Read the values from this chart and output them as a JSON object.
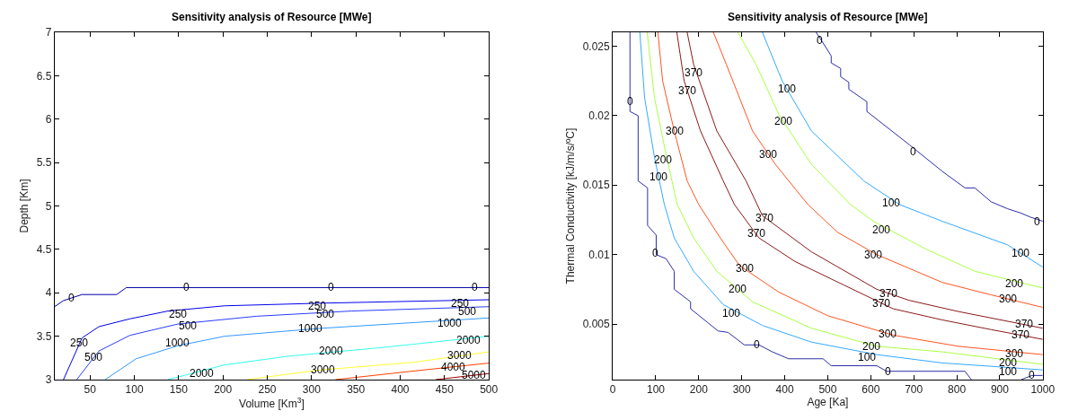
{
  "chart_data": [
    {
      "type": "line",
      "title": "Sensitivity analysis of Resource [MWe]",
      "xlabel": "Volume [Km$^{3}$]",
      "ylabel": "Depth [Km]",
      "xlim": [
        10,
        500
      ],
      "xticks": [
        50,
        100,
        150,
        200,
        250,
        300,
        350,
        400,
        450,
        500
      ],
      "ylim": [
        3,
        7
      ],
      "yticks": [
        3,
        3.5,
        4,
        4.5,
        5,
        5.5,
        6,
        6.5,
        7
      ],
      "marker": "none",
      "line_style": "solid",
      "series": [
        {
          "color": "#0000a8",
          "x": [
            10,
            20,
            41,
            80,
            91,
            500
          ],
          "values": [
            3.84,
            3.91,
            3.98,
            3.98,
            4.06,
            4.06
          ]
        },
        {
          "color": "#0000e8",
          "x": [
            20,
            41,
            60,
            95,
            138,
            202,
            309,
            500
          ],
          "values": [
            3,
            3.48,
            3.61,
            3.7,
            3.79,
            3.85,
            3.88,
            3.92
          ]
        },
        {
          "color": "#2a3cff",
          "x": [
            35,
            60,
            95,
            149,
            238,
            345,
            500
          ],
          "values": [
            3,
            3.33,
            3.51,
            3.64,
            3.73,
            3.79,
            3.84
          ]
        },
        {
          "color": "#3399ff",
          "x": [
            67,
            102,
            149,
            202,
            309,
            500
          ],
          "values": [
            3,
            3.24,
            3.39,
            3.5,
            3.59,
            3.71
          ]
        },
        {
          "color": "#33ffee",
          "x": [
            138,
            202,
            274,
            380,
            500
          ],
          "values": [
            3,
            3.17,
            3.27,
            3.37,
            3.5
          ]
        },
        {
          "color": "#ffff33",
          "x": [
            227,
            309,
            416,
            500
          ],
          "values": [
            3,
            3.11,
            3.2,
            3.32
          ]
        },
        {
          "color": "#ff4000",
          "x": [
            327,
            416,
            500
          ],
          "values": [
            3,
            3.1,
            3.19
          ]
        },
        {
          "color": "#a00000",
          "x": [
            440,
            500
          ],
          "values": [
            3,
            3.07
          ]
        }
      ],
      "annotations": [
        {
          "text": "0",
          "x": 29,
          "y": 3.94
        },
        {
          "text": "0",
          "x": 159,
          "y": 4.06
        },
        {
          "text": "0",
          "x": 322,
          "y": 4.06
        },
        {
          "text": "0",
          "x": 484,
          "y": 4.06
        },
        {
          "text": "250",
          "x": 38,
          "y": 3.42
        },
        {
          "text": "250",
          "x": 149,
          "y": 3.75
        },
        {
          "text": "250",
          "x": 306,
          "y": 3.85
        },
        {
          "text": "250",
          "x": 467,
          "y": 3.88
        },
        {
          "text": "500",
          "x": 54,
          "y": 3.26
        },
        {
          "text": "500",
          "x": 160,
          "y": 3.62
        },
        {
          "text": "500",
          "x": 315,
          "y": 3.75
        },
        {
          "text": "500",
          "x": 475,
          "y": 3.79
        },
        {
          "text": "1000",
          "x": 149,
          "y": 3.42
        },
        {
          "text": "1000",
          "x": 299,
          "y": 3.59
        },
        {
          "text": "1000",
          "x": 456,
          "y": 3.65
        },
        {
          "text": "2000",
          "x": 176,
          "y": 3.07
        },
        {
          "text": "2000",
          "x": 322,
          "y": 3.33
        },
        {
          "text": "2000",
          "x": 477,
          "y": 3.46
        },
        {
          "text": "3000",
          "x": 313,
          "y": 3.11
        },
        {
          "text": "3000",
          "x": 467,
          "y": 3.28
        },
        {
          "text": "4000",
          "x": 460,
          "y": 3.14
        },
        {
          "text": "5000",
          "x": 483,
          "y": 3.05
        }
      ]
    },
    {
      "type": "line",
      "title": "Sensitivity analysis of Resource [MWe]",
      "xlabel": "Age [Ka]",
      "ylabel": "Thermal Conductivity [kJ/m/s/ºC]",
      "xlim": [
        0,
        1000
      ],
      "xticks": [
        0,
        100,
        200,
        300,
        400,
        500,
        600,
        700,
        800,
        900,
        1000
      ],
      "ylim": [
        0.001,
        0.026
      ],
      "yticks": [
        0.005,
        0.01,
        0.015,
        0.02,
        0.025
      ],
      "marker": "none",
      "line_style": "solid",
      "series": [
        {
          "color": "#2e2ea8",
          "x": [
            40,
            40,
            59,
            59,
            81,
            81,
            101,
            101,
            124,
            143,
            143,
            181,
            181,
            245,
            268,
            306,
            340,
            371,
            409,
            489,
            508,
            614,
            637,
            819,
            834
          ],
          "values": [
            0.026,
            0.0203,
            0.02,
            0.0153,
            0.0148,
            0.0121,
            0.0114,
            0.01,
            0.0097,
            0.0088,
            0.0075,
            0.0066,
            0.0061,
            0.0045,
            0.0044,
            0.0035,
            0.0035,
            0.003,
            0.0025,
            0.0025,
            0.002,
            0.002,
            0.0016,
            0.0016,
            0.001
          ]
        },
        {
          "color": "#33aaff",
          "x": [
            63,
            74,
            97,
            120,
            143,
            188,
            257,
            348,
            462,
            614,
            766,
            1000
          ],
          "values": [
            0.026,
            0.0213,
            0.017,
            0.0136,
            0.0112,
            0.0088,
            0.0064,
            0.0049,
            0.0037,
            0.0028,
            0.0022,
            0.0017
          ]
        },
        {
          "color": "#aaff44",
          "x": [
            80,
            97,
            124,
            150,
            188,
            242,
            325,
            462,
            614,
            766,
            1000
          ],
          "values": [
            0.026,
            0.0213,
            0.0172,
            0.0136,
            0.0112,
            0.0088,
            0.0066,
            0.0047,
            0.0034,
            0.003,
            0.0021
          ]
        },
        {
          "color": "#ff5522",
          "x": [
            105,
            116,
            143,
            173,
            200,
            250,
            295,
            386,
            500,
            652,
            804,
            1000
          ],
          "values": [
            0.026,
            0.0225,
            0.0189,
            0.0153,
            0.0136,
            0.0112,
            0.0092,
            0.0073,
            0.0056,
            0.0042,
            0.0034,
            0.0028
          ]
        },
        {
          "color": "#8b1a1a",
          "x": [
            149,
            166,
            204,
            257,
            283,
            340,
            424,
            538,
            652,
            766,
            880,
            1000
          ],
          "values": [
            0.026,
            0.0225,
            0.0189,
            0.0153,
            0.0136,
            0.0112,
            0.0095,
            0.0078,
            0.0061,
            0.0053,
            0.0046,
            0.0039
          ]
        },
        {
          "color": "#8b1a1a",
          "x": [
            173,
            188,
            242,
            310,
            348,
            462,
            614,
            690,
            804,
            1000
          ],
          "values": [
            0.026,
            0.0237,
            0.0189,
            0.0153,
            0.0128,
            0.0102,
            0.0075,
            0.0067,
            0.0059,
            0.0047
          ]
        },
        {
          "color": "#ff5522",
          "x": [
            234,
            264,
            325,
            378,
            454,
            523,
            614,
            766,
            880,
            1000
          ],
          "values": [
            0.026,
            0.0237,
            0.0189,
            0.0165,
            0.0136,
            0.0116,
            0.01,
            0.008,
            0.0071,
            0.0062
          ]
        },
        {
          "color": "#aaff44",
          "x": [
            291,
            333,
            386,
            462,
            553,
            606,
            728,
            842,
            1000
          ],
          "values": [
            0.026,
            0.0237,
            0.0201,
            0.0165,
            0.0136,
            0.0124,
            0.0104,
            0.0088,
            0.0076
          ]
        },
        {
          "color": "#33aaff",
          "x": [
            348,
            394,
            462,
            584,
            667,
            766,
            918,
            1000
          ],
          "values": [
            0.026,
            0.0225,
            0.0189,
            0.0153,
            0.0136,
            0.0124,
            0.0107,
            0.0091
          ]
        },
        {
          "color": "#2e2ea8",
          "x": [
            950,
            975,
            1000
          ],
          "values": [
            0.001,
            0.0013,
            0.0013
          ]
        },
        {
          "color": "#2e2ea8",
          "x": [
            473,
            496,
            508,
            508,
            530,
            530,
            549,
            549,
            591,
            591,
            690,
            766,
            819,
            842,
            880,
            918,
            948,
            971,
            1000
          ],
          "values": [
            0.026,
            0.0249,
            0.0243,
            0.0238,
            0.0234,
            0.0228,
            0.0224,
            0.0219,
            0.021,
            0.0203,
            0.0179,
            0.016,
            0.0148,
            0.0148,
            0.0138,
            0.0133,
            0.013,
            0.0127,
            0.0124
          ]
        }
      ],
      "annotations": [
        {
          "text": "0",
          "x": 40,
          "y": 0.021
        },
        {
          "text": "0",
          "x": 100,
          "y": 0.0101
        },
        {
          "text": "0",
          "x": 335,
          "y": 0.0035
        },
        {
          "text": "0",
          "x": 640,
          "y": 0.0016
        },
        {
          "text": "0",
          "x": 975,
          "y": 0.0013
        },
        {
          "text": "100",
          "x": 106,
          "y": 0.0156
        },
        {
          "text": "100",
          "x": 276,
          "y": 0.0058
        },
        {
          "text": "100",
          "x": 591,
          "y": 0.0026
        },
        {
          "text": "100",
          "x": 918,
          "y": 0.0016
        },
        {
          "text": "200",
          "x": 116,
          "y": 0.0168
        },
        {
          "text": "200",
          "x": 291,
          "y": 0.0075
        },
        {
          "text": "200",
          "x": 602,
          "y": 0.0034
        },
        {
          "text": "200",
          "x": 918,
          "y": 0.0022
        },
        {
          "text": "300",
          "x": 143,
          "y": 0.0189
        },
        {
          "text": "300",
          "x": 306,
          "y": 0.009
        },
        {
          "text": "300",
          "x": 640,
          "y": 0.0043
        },
        {
          "text": "300",
          "x": 933,
          "y": 0.0029
        },
        {
          "text": "370",
          "x": 173,
          "y": 0.0218
        },
        {
          "text": "370",
          "x": 333,
          "y": 0.0115
        },
        {
          "text": "370",
          "x": 625,
          "y": 0.0065
        },
        {
          "text": "370",
          "x": 948,
          "y": 0.0042
        },
        {
          "text": "370",
          "x": 188,
          "y": 0.0231
        },
        {
          "text": "370",
          "x": 352,
          "y": 0.0126
        },
        {
          "text": "370",
          "x": 641,
          "y": 0.0072
        },
        {
          "text": "370",
          "x": 956,
          "y": 0.005
        },
        {
          "text": "300",
          "x": 362,
          "y": 0.0172
        },
        {
          "text": "300",
          "x": 606,
          "y": 0.01
        },
        {
          "text": "300",
          "x": 918,
          "y": 0.0068
        },
        {
          "text": "200",
          "x": 397,
          "y": 0.0196
        },
        {
          "text": "200",
          "x": 625,
          "y": 0.0118
        },
        {
          "text": "200",
          "x": 933,
          "y": 0.0079
        },
        {
          "text": "100",
          "x": 405,
          "y": 0.0219
        },
        {
          "text": "100",
          "x": 648,
          "y": 0.0137
        },
        {
          "text": "100",
          "x": 948,
          "y": 0.0101
        },
        {
          "text": "0",
          "x": 481,
          "y": 0.0254
        },
        {
          "text": "0",
          "x": 698,
          "y": 0.0174
        },
        {
          "text": "0",
          "x": 986,
          "y": 0.0124
        }
      ]
    }
  ]
}
